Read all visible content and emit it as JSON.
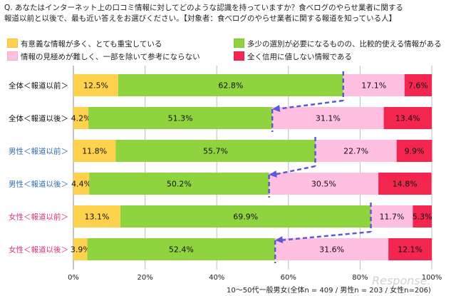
{
  "question": {
    "line1": "Q. あなたはインターネット上の口コミ情報に対してどのような認識を持っていますか？食べログのやらせ業者に関する",
    "line2": "報道以前と以後で、最も近い答えをお選びください。【対象者：食べログのやらせ業者に関する報道を知っている人】"
  },
  "footnote": "10～50代一般男女(全体n = 409 / 男性n = 203 / 女性n=206)",
  "colors": {
    "series": [
      "#ffd24d",
      "#8fd33f",
      "#ffbfe0",
      "#f2264f"
    ],
    "label_total": "#111111",
    "label_male": "#2e6fb0",
    "label_female": "#d6337f",
    "arrow": "#5a5ad6",
    "grid": "#bdbdbd"
  },
  "chart_data": {
    "type": "bar",
    "orientation": "horizontal",
    "stacked": true,
    "percent_stacked": true,
    "categories": [
      "全体＜報道以前＞",
      "全体＜報道以後＞",
      "男性＜報道以前＞",
      "男性＜報道以後＞",
      "女性＜報道以前＞",
      "女性＜報道以後＞"
    ],
    "category_groups": [
      "total",
      "total",
      "male",
      "male",
      "female",
      "female"
    ],
    "series": [
      {
        "name": "有意義な情報が多く、とても重宝している",
        "values": [
          12.5,
          4.2,
          11.8,
          4.4,
          13.1,
          3.9
        ]
      },
      {
        "name": "多少の選別が必要になるものの、比較的使える情報がある",
        "values": [
          62.8,
          51.3,
          55.7,
          50.2,
          69.9,
          52.4
        ]
      },
      {
        "name": "情報の見極めが難しく、一部を除いて参考にならない",
        "values": [
          17.1,
          31.1,
          22.7,
          30.5,
          11.7,
          31.6
        ]
      },
      {
        "name": "全く信用に値しない情報である",
        "values": [
          7.6,
          13.4,
          9.9,
          14.8,
          5.3,
          12.1
        ]
      }
    ],
    "data_labels": [
      [
        "12.5%",
        "4.2%",
        "11.8%",
        "4.4%",
        "13.1%",
        "3.9%"
      ],
      [
        "62.8%",
        "51.3%",
        "55.7%",
        "50.2%",
        "69.9%",
        "52.4%"
      ],
      [
        "17.1%",
        "31.1%",
        "22.7%",
        "30.5%",
        "11.7%",
        "31.6%"
      ],
      [
        "7.6%",
        "13.4%",
        "9.9%",
        "14.8%",
        "5.3%",
        "12.1%"
      ]
    ],
    "x_ticks": [
      "0%",
      "20%",
      "40%",
      "60%",
      "80%",
      "100%"
    ],
    "xlim": [
      0,
      100
    ],
    "grid": true,
    "legend_position": "top",
    "annotations": "dashed arrows from the before-bar's cumulative positive share to the after-bar's cumulative positive share"
  }
}
